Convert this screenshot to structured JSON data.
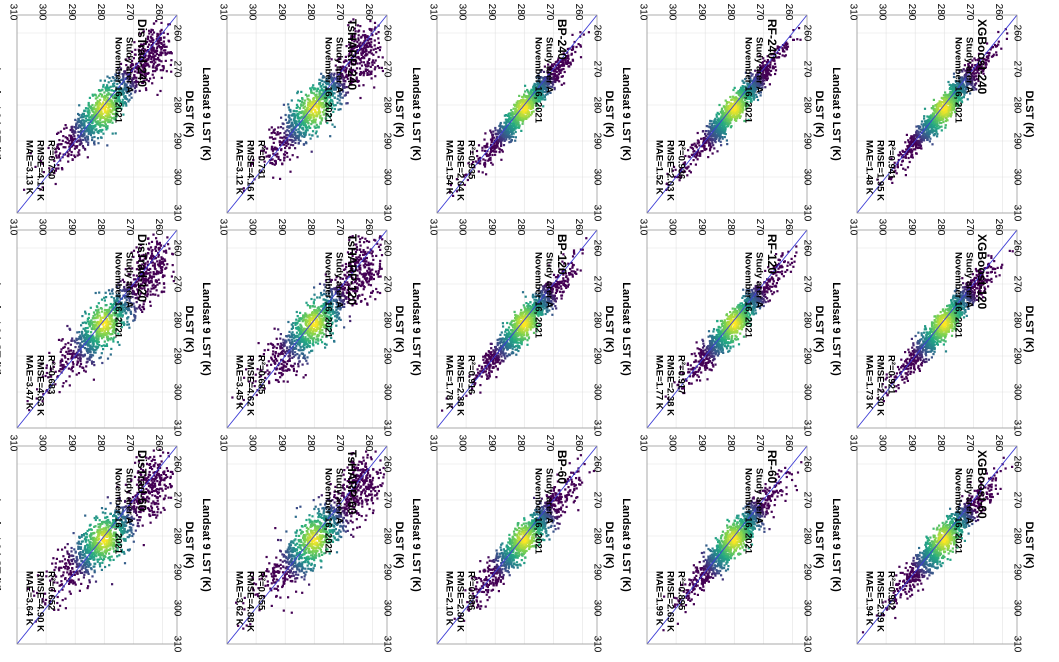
{
  "figure": {
    "orientation": "rotated 90 degrees clockwise",
    "colormap": [
      "#440154",
      "#414487",
      "#2a788e",
      "#22a884",
      "#7ad151",
      "#fde725"
    ],
    "frame_color": "#999999",
    "line_color": "#3b3bd6"
  },
  "chart_data": [
    {
      "type": "scatter",
      "title": "DisTrad-240",
      "study_area": "Study arer A",
      "date": "November 16, 2021",
      "r2": "R²=0.730",
      "rmse": "RMSE=4.17 K",
      "mae": "MAE=3.13 K",
      "xlabel": "DLST (K)",
      "ylabel": "Landsat 9 LST (K)",
      "xlim": [
        255,
        310
      ],
      "ylim": [
        255,
        310
      ],
      "xticks": [
        "260",
        "270",
        "280",
        "290",
        "300",
        "310"
      ],
      "yticks": [
        "260",
        "270",
        "280",
        "290",
        "300",
        "310"
      ]
    },
    {
      "type": "scatter",
      "title": "DisTrad-120",
      "study_area": "Study arer A",
      "date": "November 16, 2021",
      "r2": "R²=0.683",
      "rmse": "RMSE=4.63 K",
      "mae": "MAE=3.47 K",
      "xlabel": "DLST (K)",
      "ylabel": "Landsat 9 LST (K)",
      "xlim": [
        255,
        310
      ],
      "ylim": [
        255,
        310
      ],
      "xticks": [
        "260",
        "270",
        "280",
        "290",
        "300",
        "310"
      ],
      "yticks": [
        "260",
        "270",
        "280",
        "290",
        "300",
        "310"
      ]
    },
    {
      "type": "scatter",
      "title": "DisTrad-60",
      "study_area": "Study arer A",
      "date": "November 16, 2021",
      "r2": "R²=0.652",
      "rmse": "RMSE=4.90 K",
      "mae": "MAE=3.64 K",
      "xlabel": "DLST (K)",
      "ylabel": "Landsat 9 LST (K)",
      "xlim": [
        255,
        310
      ],
      "ylim": [
        255,
        310
      ],
      "xticks": [
        "260",
        "270",
        "280",
        "290",
        "300",
        "310"
      ],
      "yticks": [
        "260",
        "270",
        "280",
        "290",
        "300",
        "310"
      ]
    },
    {
      "type": "scatter",
      "title": "TsHARP-240",
      "study_area": "Study arer A",
      "date": "November 16, 2021",
      "r2": "R²=0.731",
      "rmse": "RMSE=4.16 K",
      "mae": "MAE=3.12 K",
      "xlabel": "DLST (K)",
      "ylabel": "Landsat 9 LST (K)",
      "xlim": [
        255,
        310
      ],
      "ylim": [
        255,
        310
      ],
      "xticks": [
        "260",
        "270",
        "280",
        "290",
        "300",
        "310"
      ],
      "yticks": [
        "260",
        "270",
        "280",
        "290",
        "300",
        "310"
      ]
    },
    {
      "type": "scatter",
      "title": "TsHARP-120",
      "study_area": "Study arer A",
      "date": "November 16, 2021",
      "r2": "R²=0.685",
      "rmse": "RMSE=4.62 K",
      "mae": "MAE=3.45 K",
      "xlabel": "DLST (K)",
      "ylabel": "Landsat 9 LST (K)",
      "xlim": [
        255,
        310
      ],
      "ylim": [
        255,
        310
      ],
      "xticks": [
        "260",
        "270",
        "280",
        "290",
        "300",
        "310"
      ],
      "yticks": [
        "260",
        "270",
        "280",
        "290",
        "300",
        "310"
      ]
    },
    {
      "type": "scatter",
      "title": "TsHARP-60",
      "study_area": "Study arer A",
      "date": "November 16, 2021",
      "r2": "R²=0.655",
      "rmse": "RMSE=4.88 K",
      "mae": "MAE=3.62 K",
      "xlabel": "DLST (K)",
      "ylabel": "Landsat 9 LST (K)",
      "xlim": [
        255,
        310
      ],
      "ylim": [
        255,
        310
      ],
      "xticks": [
        "260",
        "270",
        "280",
        "290",
        "300",
        "310"
      ],
      "yticks": [
        "260",
        "270",
        "280",
        "290",
        "300",
        "310"
      ]
    },
    {
      "type": "scatter",
      "title": "BP-240",
      "study_area": "Study arer A",
      "date": "November 16, 2021",
      "r2": "R²=0.935",
      "rmse": "RMSE=2.04 K",
      "mae": "MAE=1.54 K",
      "xlabel": "DLST (K)",
      "ylabel": "Landsat 9 LST (K)",
      "xlim": [
        255,
        310
      ],
      "ylim": [
        255,
        310
      ],
      "xticks": [
        "260",
        "270",
        "280",
        "290",
        "300",
        "310"
      ],
      "yticks": [
        "260",
        "270",
        "280",
        "290",
        "300",
        "310"
      ]
    },
    {
      "type": "scatter",
      "title": "BP-120",
      "study_area": "Study arer A",
      "date": "November 16, 2021",
      "r2": "R²=0.916",
      "rmse": "RMSE=2.38 K",
      "mae": "MAE=1.78 K",
      "xlabel": "DLST (K)",
      "ylabel": "Landsat 9 LST (K)",
      "xlim": [
        255,
        310
      ],
      "ylim": [
        255,
        310
      ],
      "xticks": [
        "260",
        "270",
        "280",
        "290",
        "300",
        "310"
      ],
      "yticks": [
        "260",
        "270",
        "280",
        "290",
        "300",
        "310"
      ]
    },
    {
      "type": "scatter",
      "title": "BP-60",
      "study_area": "Study arer A",
      "date": "November 16, 2021",
      "r2": "R²=0.886",
      "rmse": "RMSE=2.80 K",
      "mae": "MAE=2.10 K",
      "xlabel": "DLST (K)",
      "ylabel": "Landsat 9 LST (K)",
      "xlim": [
        255,
        310
      ],
      "ylim": [
        255,
        310
      ],
      "xticks": [
        "260",
        "270",
        "280",
        "290",
        "300",
        "310"
      ],
      "yticks": [
        "260",
        "270",
        "280",
        "290",
        "300",
        "310"
      ]
    },
    {
      "type": "scatter",
      "title": "RF-240",
      "study_area": "Study arer A",
      "date": "November 16, 2021",
      "r2": "R²=0.936",
      "rmse": "RMSE=2.03 K",
      "mae": "MAE=1.52 K",
      "xlabel": "DLST (K)",
      "ylabel": "Landsat 9 LST (K)",
      "xlim": [
        255,
        310
      ],
      "ylim": [
        255,
        310
      ],
      "xticks": [
        "260",
        "270",
        "280",
        "290",
        "300",
        "310"
      ],
      "yticks": [
        "260",
        "270",
        "280",
        "290",
        "300",
        "310"
      ]
    },
    {
      "type": "scatter",
      "title": "RF-120",
      "study_area": "Study arer A",
      "date": "November 16, 2021",
      "r2": "R²=0.917",
      "rmse": "RMSE=2.38 K",
      "mae": "MAE=1.77 K",
      "xlabel": "DLST (K)",
      "ylabel": "Landsat 9 LST (K)",
      "xlim": [
        255,
        310
      ],
      "ylim": [
        255,
        310
      ],
      "xticks": [
        "260",
        "270",
        "280",
        "290",
        "300",
        "310"
      ],
      "yticks": [
        "260",
        "270",
        "280",
        "290",
        "300",
        "310"
      ]
    },
    {
      "type": "scatter",
      "title": "RF-60",
      "study_area": "Study arer A",
      "date": "November 16, 2021",
      "r2": "R²=0.895",
      "rmse": "RMSE=2.69 K",
      "mae": "MAE=1.99 K",
      "xlabel": "DLST (K)",
      "ylabel": "Landsat 9 LST (K)",
      "xlim": [
        255,
        310
      ],
      "ylim": [
        255,
        310
      ],
      "xticks": [
        "260",
        "270",
        "280",
        "290",
        "300",
        "310"
      ],
      "yticks": [
        "260",
        "270",
        "280",
        "290",
        "300",
        "310"
      ]
    },
    {
      "type": "scatter",
      "title": "XGBoost-240",
      "study_area": "Study arer A",
      "date": "November 16, 2021",
      "r2": "R²=0.941",
      "rmse": "RMSE=1.95 K",
      "mae": "MAE=1.48 K",
      "xlabel": "DLST (K)",
      "ylabel": "Landsat 9 LST (K)",
      "xlim": [
        255,
        310
      ],
      "ylim": [
        255,
        310
      ],
      "xticks": [
        "260",
        "270",
        "280",
        "290",
        "300",
        "310"
      ],
      "yticks": [
        "260",
        "270",
        "280",
        "290",
        "300",
        "310"
      ]
    },
    {
      "type": "scatter",
      "title": "XGBoost-120",
      "study_area": "Study arer A",
      "date": "November 16, 2021",
      "r2": "R²=0.921",
      "rmse": "RMSE=2.30 K",
      "mae": "MAE=1.73 K",
      "xlabel": "DLST (K)",
      "ylabel": "Landsat 9 LST (K)",
      "xlim": [
        255,
        310
      ],
      "ylim": [
        255,
        310
      ],
      "xticks": [
        "260",
        "270",
        "280",
        "290",
        "300",
        "310"
      ],
      "yticks": [
        "260",
        "270",
        "280",
        "290",
        "300",
        "310"
      ]
    },
    {
      "type": "scatter",
      "title": "XGBoost-60",
      "study_area": "Study arer A",
      "date": "November 16, 2021",
      "r2": "R²=0.902",
      "rmse": "RMSE=2.59 K",
      "mae": "MAE=1.94 K",
      "xlabel": "DLST (K)",
      "ylabel": "Landsat 9 LST (K)",
      "xlim": [
        255,
        310
      ],
      "ylim": [
        255,
        310
      ],
      "xticks": [
        "260",
        "270",
        "280",
        "290",
        "300",
        "310"
      ],
      "yticks": [
        "260",
        "270",
        "280",
        "290",
        "300",
        "310"
      ]
    }
  ]
}
